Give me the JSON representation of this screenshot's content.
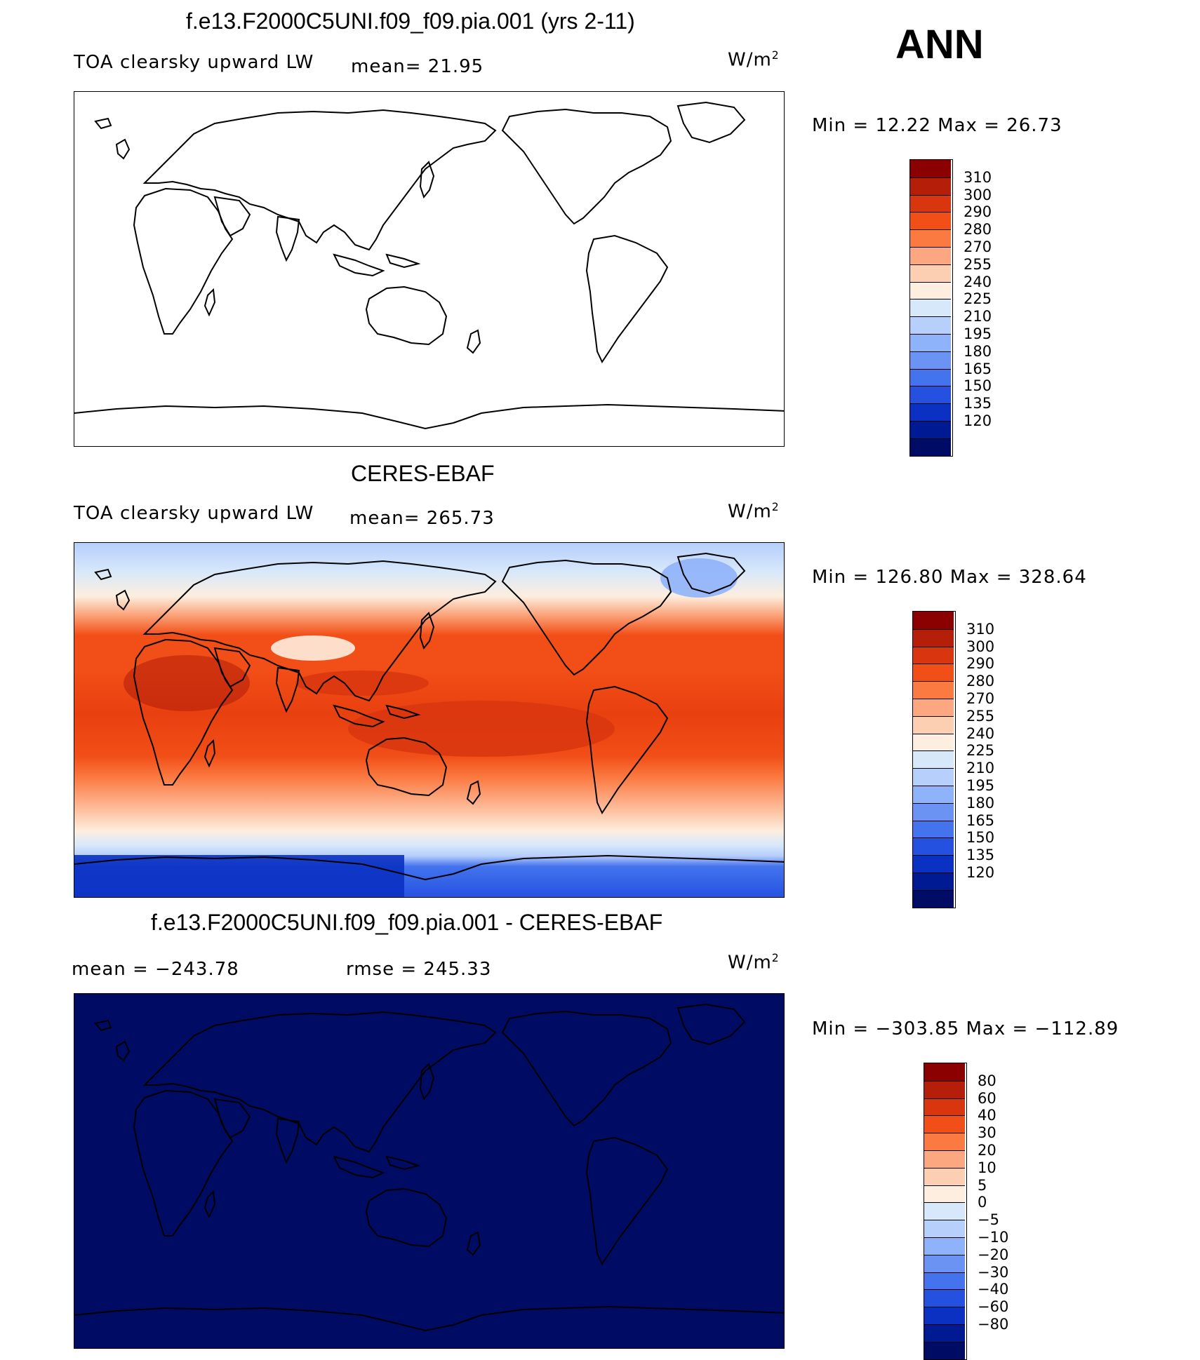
{
  "season": "ANN",
  "panels": [
    {
      "title": "f.e13.F2000C5UNI.f09_f09.pia.001 (yrs 2-11)",
      "left_label": "TOA clearsky upward LW",
      "stat1": "mean=  21.95",
      "stat2": "",
      "units_base": "W/m",
      "units_exp": "2",
      "minmax": "Min =   12.22 Max =   26.73",
      "fill": "none",
      "colorbar": {
        "colors": [
          "#8b0000",
          "#b51f0a",
          "#d9360f",
          "#f24e17",
          "#fb7a41",
          "#fca77f",
          "#fdcfb2",
          "#fdeedf",
          "#d7e8fb",
          "#b6cffb",
          "#8fb3fa",
          "#6a93f4",
          "#4473ee",
          "#2451e0",
          "#0a31c2",
          "#001a94",
          "#000c63"
        ],
        "labels": [
          "310",
          "300",
          "290",
          "280",
          "270",
          "255",
          "240",
          "225",
          "210",
          "195",
          "180",
          "165",
          "150",
          "135",
          "120"
        ]
      }
    },
    {
      "title": "CERES-EBAF",
      "left_label": "TOA clearsky upward LW",
      "stat1": "mean= 265.73",
      "stat2": "",
      "units_base": "W/m",
      "units_exp": "2",
      "minmax": "Min = 126.80 Max = 328.64",
      "fill": "ceres",
      "colorbar": {
        "colors": [
          "#8b0000",
          "#b51f0a",
          "#d9360f",
          "#f24e17",
          "#fb7a41",
          "#fca77f",
          "#fdcfb2",
          "#fdeedf",
          "#d7e8fb",
          "#b6cffb",
          "#8fb3fa",
          "#6a93f4",
          "#4473ee",
          "#2451e0",
          "#0a31c2",
          "#001a94",
          "#000c63"
        ],
        "labels": [
          "310",
          "300",
          "290",
          "280",
          "270",
          "255",
          "240",
          "225",
          "210",
          "195",
          "180",
          "165",
          "150",
          "135",
          "120"
        ]
      }
    },
    {
      "title": "f.e13.F2000C5UNI.f09_f09.pia.001 - CERES-EBAF",
      "left_label": "",
      "stat1": "mean = −243.78",
      "stat2": "rmse = 245.33",
      "units_base": "W/m",
      "units_exp": "2",
      "minmax": "Min = −303.85 Max = −112.89",
      "fill": "diff",
      "colorbar": {
        "colors": [
          "#8b0000",
          "#b51f0a",
          "#d9360f",
          "#f24e17",
          "#fb7a41",
          "#fca77f",
          "#fdcfb2",
          "#fdeedf",
          "#d7e8fb",
          "#b6cffb",
          "#8fb3fa",
          "#6a93f4",
          "#4473ee",
          "#2451e0",
          "#0a31c2",
          "#001a94",
          "#000c63"
        ],
        "labels": [
          "80",
          "60",
          "40",
          "30",
          "20",
          "10",
          "5",
          "0",
          "−5",
          "−10",
          "−20",
          "−30",
          "−40",
          "−60",
          "−80"
        ]
      }
    }
  ],
  "colors": {
    "diff_fill": "#000c63",
    "coast": "#000000"
  }
}
